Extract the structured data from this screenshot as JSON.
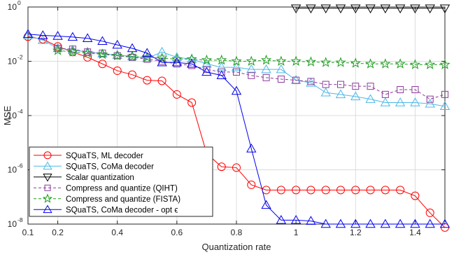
{
  "chart_data": {
    "type": "line",
    "xlabel": "Quantization rate",
    "ylabel": "MSE",
    "xlim": [
      0.1,
      1.5
    ],
    "ylim": [
      1e-08,
      1
    ],
    "yscale": "log",
    "grid": true,
    "legend_position": "bottom-left",
    "x_ticks": [
      0.1,
      0.2,
      0.4,
      0.6,
      0.8,
      1,
      1.2,
      1.4
    ],
    "x_tick_labels": [
      "0.1",
      "0.2",
      "0.4",
      "0.6",
      "0.8",
      "1",
      "1.2",
      "1.4"
    ],
    "y_ticks": [
      1e-08,
      1e-06,
      0.0001,
      0.01,
      1
    ],
    "y_tick_labels": [
      {
        "base": "10",
        "exp": "-8"
      },
      {
        "base": "10",
        "exp": "-6"
      },
      {
        "base": "10",
        "exp": "-4"
      },
      {
        "base": "10",
        "exp": "-2"
      },
      {
        "base": "10",
        "exp": "0"
      }
    ],
    "series": [
      {
        "name": "SQuaTS, ML decoder",
        "color": "#ff0000",
        "marker": "circle",
        "dashed": false,
        "x": [
          0.1,
          0.15,
          0.2,
          0.25,
          0.3,
          0.35,
          0.4,
          0.45,
          0.5,
          0.55,
          0.6,
          0.65,
          0.7,
          0.75,
          0.8,
          0.85,
          0.9,
          0.95,
          1.0,
          1.05,
          1.1,
          1.15,
          1.2,
          1.25,
          1.3,
          1.35,
          1.4,
          1.45,
          1.5
        ],
        "y": [
          0.08,
          0.065,
          0.035,
          0.022,
          0.014,
          0.008,
          0.0045,
          0.0032,
          0.002,
          0.0019,
          0.0006,
          0.0003,
          4e-06,
          1.3e-06,
          1.2e-06,
          2.8e-07,
          1.8e-07,
          1.8e-07,
          1.8e-07,
          1.8e-07,
          1.8e-07,
          1.8e-07,
          1.8e-07,
          1.8e-07,
          1.8e-07,
          1.8e-07,
          1.1e-07,
          2.6e-08,
          7.5e-09
        ]
      },
      {
        "name": "SQuaTS, CoMa decoder",
        "color": "#4db8e8",
        "marker": "triangle",
        "dashed": false,
        "x": [
          0.1,
          0.15,
          0.2,
          0.25,
          0.3,
          0.35,
          0.4,
          0.45,
          0.5,
          0.55,
          0.6,
          0.65,
          0.7,
          0.75,
          0.8,
          0.85,
          0.9,
          0.95,
          1.0,
          1.05,
          1.1,
          1.15,
          1.2,
          1.25,
          1.3,
          1.35,
          1.4,
          1.45,
          1.5
        ],
        "y": [
          0.09,
          0.06,
          0.03,
          0.026,
          0.022,
          0.019,
          0.017,
          0.015,
          0.013,
          0.022,
          0.014,
          0.012,
          0.008,
          0.006,
          0.006,
          0.005,
          0.005,
          0.005,
          0.002,
          0.0016,
          0.0007,
          0.0006,
          0.0005,
          0.0004,
          0.0003,
          0.0003,
          0.0003,
          0.00027,
          0.00022
        ]
      },
      {
        "name": "Scalar quantization",
        "color": "#000000",
        "marker": "triangle-down",
        "dashed": false,
        "x": [
          1.0,
          1.05,
          1.1,
          1.15,
          1.2,
          1.25,
          1.3,
          1.35,
          1.4,
          1.45,
          1.5
        ],
        "y": [
          0.9,
          0.9,
          0.9,
          0.9,
          0.9,
          0.9,
          0.9,
          0.9,
          0.9,
          0.9,
          0.9
        ]
      },
      {
        "name": "Compress and quantize (QIHT)",
        "color": "#8b3a9a",
        "marker": "square",
        "dashed": true,
        "x": [
          0.2,
          0.25,
          0.3,
          0.35,
          0.4,
          0.45,
          0.5,
          0.55,
          0.6,
          0.65,
          0.7,
          0.75,
          0.8,
          0.85,
          0.9,
          0.95,
          1.0,
          1.05,
          1.1,
          1.15,
          1.2,
          1.25,
          1.3,
          1.35,
          1.4,
          1.45,
          1.5
        ],
        "y": [
          0.03,
          0.028,
          0.022,
          0.02,
          0.016,
          0.014,
          0.012,
          0.01,
          0.008,
          0.007,
          0.005,
          0.004,
          0.004,
          0.003,
          0.0025,
          0.0022,
          0.002,
          0.0018,
          0.0014,
          0.0014,
          0.0012,
          0.0012,
          0.0006,
          0.0009,
          0.0009,
          0.0004,
          0.0006
        ]
      },
      {
        "name": "Compress and quantize (FISTA)",
        "color": "#1e9c1e",
        "marker": "star",
        "dashed": true,
        "x": [
          0.2,
          0.25,
          0.3,
          0.35,
          0.4,
          0.45,
          0.5,
          0.55,
          0.6,
          0.65,
          0.7,
          0.75,
          0.8,
          0.85,
          0.9,
          0.95,
          1.0,
          1.05,
          1.1,
          1.15,
          1.2,
          1.25,
          1.3,
          1.35,
          1.4,
          1.45,
          1.5
        ],
        "y": [
          0.025,
          0.022,
          0.02,
          0.018,
          0.016,
          0.015,
          0.014,
          0.013,
          0.012,
          0.012,
          0.011,
          0.011,
          0.01,
          0.01,
          0.011,
          0.01,
          0.01,
          0.0095,
          0.009,
          0.009,
          0.0085,
          0.008,
          0.008,
          0.008,
          0.0075,
          0.0075,
          0.0075
        ]
      },
      {
        "name": "SQuaTS, CoMa decoder - opt ϵ",
        "color": "#0000ee",
        "marker": "triangle",
        "dashed": false,
        "x": [
          0.1,
          0.15,
          0.2,
          0.25,
          0.3,
          0.35,
          0.4,
          0.45,
          0.5,
          0.55,
          0.6,
          0.65,
          0.7,
          0.75,
          0.8,
          0.85,
          0.9,
          0.95,
          1.0,
          1.05,
          1.1,
          1.15,
          1.2,
          1.25,
          1.3,
          1.35,
          1.4,
          1.45,
          1.5
        ],
        "y": [
          0.1,
          0.09,
          0.085,
          0.078,
          0.07,
          0.055,
          0.04,
          0.03,
          0.02,
          0.009,
          0.009,
          0.008,
          0.004,
          0.003,
          0.0008,
          6e-06,
          5e-08,
          1.4e-08,
          1.4e-08,
          1.3e-08,
          1e-08,
          1e-08,
          1e-08,
          1e-08,
          1e-08,
          1e-08,
          1e-08,
          1e-08,
          1e-08
        ]
      }
    ]
  }
}
